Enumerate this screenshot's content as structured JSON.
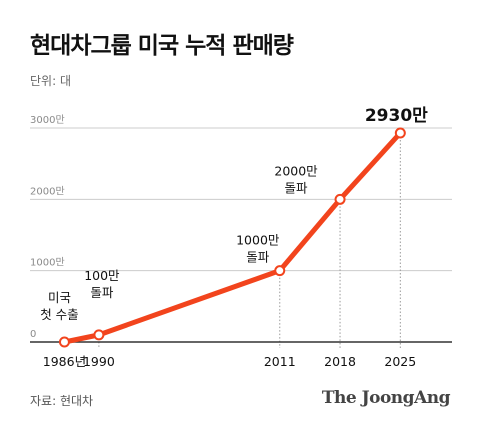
{
  "title": "현대차그룹 미국 누적 판매량",
  "unit_label": "단위: 대",
  "source": "자료: 현대차",
  "brand": "The JoongAng",
  "colors": {
    "line": "#f2441d",
    "axis": "#333333",
    "grid": "#cccccc",
    "marker_fill": "#ffffff"
  },
  "chart_data": {
    "type": "line",
    "x": [
      1986,
      1990,
      2011,
      2018,
      2025
    ],
    "x_tick_labels": [
      "1986년",
      "1990",
      "2011",
      "2018",
      "2025"
    ],
    "values": [
      0,
      100,
      1000,
      2000,
      2930
    ],
    "y_ticks": [
      0,
      1000,
      2000,
      3000
    ],
    "y_tick_labels": [
      "0",
      "1000만",
      "2000만",
      "3000만"
    ],
    "ylim": [
      0,
      3000
    ],
    "xlim": [
      1982,
      2031
    ],
    "grid": true,
    "annotations": [
      {
        "x": 1986,
        "lines": [
          "미국",
          "첫 수출"
        ]
      },
      {
        "x": 1990,
        "lines": [
          "100만",
          "돌파"
        ]
      },
      {
        "x": 2011,
        "lines": [
          "1000만",
          "돌파"
        ]
      },
      {
        "x": 2018,
        "lines": [
          "2000만",
          "돌파"
        ]
      },
      {
        "x": 2025,
        "lines": [
          "2930만"
        ],
        "emphasis": true
      }
    ]
  }
}
